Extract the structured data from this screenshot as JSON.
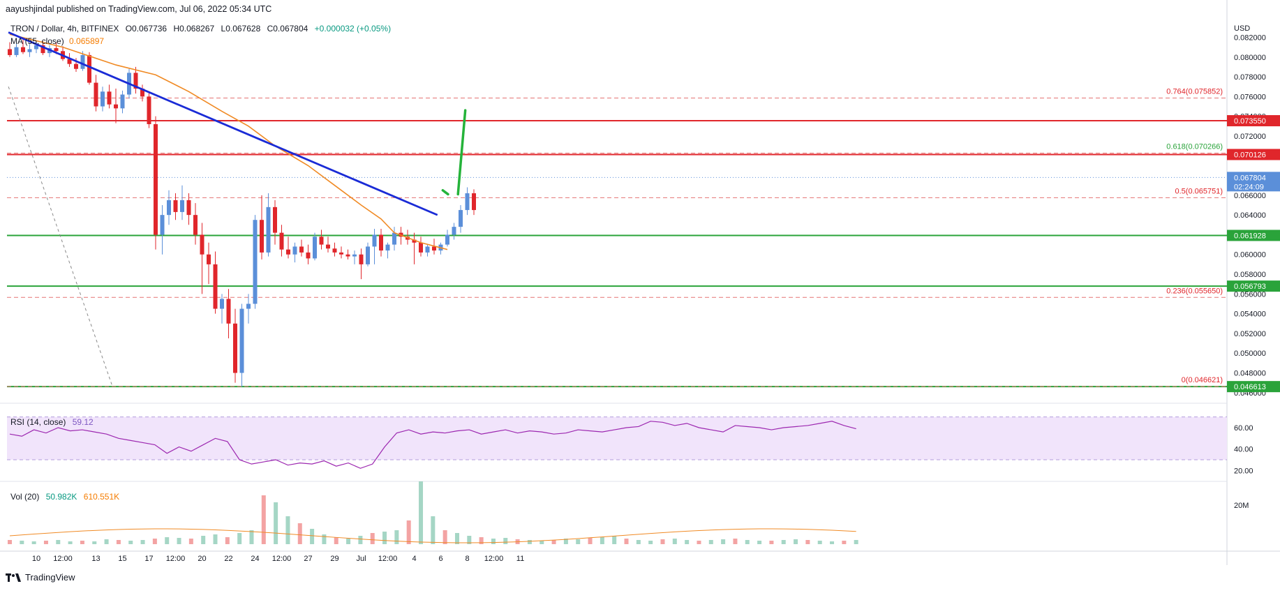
{
  "publisher": "aayushjindal published on TradingView.com, Jul 06, 2022 05:34 UTC",
  "legend": {
    "symbol": "TRON / Dollar, 4h, BITFINEX",
    "open": "O0.067736",
    "high": "H0.068267",
    "low": "L0.067628",
    "close": "C0.067804",
    "change": "+0.000032 (+0.05%)",
    "ma_label": "MA (55, close)",
    "ma_value": "0.065897"
  },
  "rsi_legend": {
    "label": "RSI (14, close)",
    "value": "59.12"
  },
  "vol_legend": {
    "label": "Vol (20)",
    "value1": "50.982K",
    "value2": "610.551K"
  },
  "footer": {
    "brand": "TradingView"
  },
  "colors": {
    "up": "#5b8fd9",
    "down": "#e0262b",
    "trendline": "#1a2bd6",
    "ma": "#f08a24",
    "resistance": "#e0262b",
    "support": "#2aa33a",
    "rsi": "#9c27b0",
    "rsi_band": "#f1e4fb",
    "arrow": "#25b33a"
  },
  "chart_data": {
    "type": "candlestick",
    "currency": "USD",
    "y_axis_unit": "USD",
    "ylim": [
      0.0462,
      0.0838
    ],
    "y_ticks": [
      "0.082000",
      "0.080000",
      "0.078000",
      "0.076000",
      "0.074000",
      "0.072000",
      "0.070000",
      "0.068000",
      "0.066000",
      "0.064000",
      "0.062000",
      "0.060000",
      "0.058000",
      "0.056000",
      "0.054000",
      "0.052000",
      "0.050000",
      "0.048000",
      "0.046000"
    ],
    "x_ticks": [
      "10",
      "12:00",
      "13",
      "15",
      "17",
      "12:00",
      "20",
      "22",
      "24",
      "12:00",
      "27",
      "29",
      "Jul",
      "12:00",
      "4",
      "6",
      "8",
      "12:00",
      "11"
    ],
    "x_tick_positions": [
      4,
      8,
      13,
      17,
      21,
      25,
      29,
      33,
      37,
      41,
      45,
      49,
      53,
      57,
      61,
      65,
      69,
      73,
      77
    ],
    "price_axis_labels": [
      {
        "text": "0.073550",
        "value": 0.07355,
        "color": "#e0262b"
      },
      {
        "text": "0.070126",
        "value": 0.070126,
        "color": "#e0262b"
      },
      {
        "text": "0.067804",
        "value": 0.067804,
        "color": "#5b8fd9",
        "sub": "02:24:09"
      },
      {
        "text": "0.061928",
        "value": 0.061928,
        "color": "#2aa33a"
      },
      {
        "text": "0.056793",
        "value": 0.056793,
        "color": "#2aa33a"
      },
      {
        "text": "0.046613",
        "value": 0.046613,
        "color": "#2aa33a"
      }
    ],
    "horizontal_levels": [
      {
        "name": "resistance-1",
        "value": 0.07355,
        "style": "solid",
        "color": "#e0262b"
      },
      {
        "name": "resistance-2",
        "value": 0.070126,
        "style": "solid",
        "color": "#e0262b"
      },
      {
        "name": "support-1",
        "value": 0.061928,
        "style": "solid",
        "color": "#2aa33a"
      },
      {
        "name": "support-2",
        "value": 0.056793,
        "style": "solid",
        "color": "#2aa33a"
      },
      {
        "name": "support-3",
        "value": 0.046613,
        "style": "solid",
        "color": "#2aa33a"
      }
    ],
    "fib_levels": [
      {
        "label": "0.764(0.075852)",
        "value": 0.075852
      },
      {
        "label": "0.618(0.070266)",
        "value": 0.070266
      },
      {
        "label": "0.5(0.065751)",
        "value": 0.065751
      },
      {
        "label": "0.236(0.055650)",
        "value": 0.05565
      },
      {
        "label": "0(0.046621)",
        "value": 0.046621
      }
    ],
    "last_price": 0.067804,
    "trendline": {
      "from": {
        "x": -0.2,
        "price": 0.0825
      },
      "to": {
        "x": 64.5,
        "price": 0.064
      }
    },
    "fib_dashed_line": {
      "from": {
        "x": -0.2,
        "price": 0.077
      },
      "to": {
        "x": 15.5,
        "price": 0.0466
      }
    },
    "projection": [
      {
        "from": {
          "x": 65.3,
          "price": 0.0665
        },
        "to": {
          "x": 66.1,
          "price": 0.0661
        }
      },
      {
        "from": {
          "x": 67.6,
          "price": 0.0661
        },
        "to": {
          "x": 68.7,
          "price": 0.0746
        }
      }
    ],
    "candles": [
      {
        "o": 0.0808,
        "h": 0.0815,
        "l": 0.08,
        "c": 0.0802
      },
      {
        "o": 0.0802,
        "h": 0.0814,
        "l": 0.08,
        "c": 0.081
      },
      {
        "o": 0.081,
        "h": 0.0818,
        "l": 0.0803,
        "c": 0.0805
      },
      {
        "o": 0.0805,
        "h": 0.0813,
        "l": 0.08,
        "c": 0.0808
      },
      {
        "o": 0.0808,
        "h": 0.0817,
        "l": 0.0804,
        "c": 0.0812
      },
      {
        "o": 0.0812,
        "h": 0.0816,
        "l": 0.0802,
        "c": 0.0804
      },
      {
        "o": 0.0804,
        "h": 0.0812,
        "l": 0.08,
        "c": 0.0809
      },
      {
        "o": 0.0809,
        "h": 0.0815,
        "l": 0.0803,
        "c": 0.0806
      },
      {
        "o": 0.0806,
        "h": 0.0811,
        "l": 0.0796,
        "c": 0.0798
      },
      {
        "o": 0.0798,
        "h": 0.0804,
        "l": 0.079,
        "c": 0.0793
      },
      {
        "o": 0.0793,
        "h": 0.0799,
        "l": 0.0785,
        "c": 0.0788
      },
      {
        "o": 0.0788,
        "h": 0.0806,
        "l": 0.0786,
        "c": 0.0802
      },
      {
        "o": 0.0802,
        "h": 0.0805,
        "l": 0.0772,
        "c": 0.0774
      },
      {
        "o": 0.0774,
        "h": 0.0782,
        "l": 0.0745,
        "c": 0.075
      },
      {
        "o": 0.075,
        "h": 0.077,
        "l": 0.0745,
        "c": 0.0765
      },
      {
        "o": 0.0765,
        "h": 0.0772,
        "l": 0.0748,
        "c": 0.0752
      },
      {
        "o": 0.0752,
        "h": 0.0768,
        "l": 0.0733,
        "c": 0.0748
      },
      {
        "o": 0.0748,
        "h": 0.0766,
        "l": 0.0743,
        "c": 0.0762
      },
      {
        "o": 0.0762,
        "h": 0.0788,
        "l": 0.0758,
        "c": 0.0784
      },
      {
        "o": 0.0784,
        "h": 0.079,
        "l": 0.0763,
        "c": 0.0768
      },
      {
        "o": 0.0768,
        "h": 0.0772,
        "l": 0.0755,
        "c": 0.076
      },
      {
        "o": 0.076,
        "h": 0.0765,
        "l": 0.0728,
        "c": 0.0732
      },
      {
        "o": 0.0732,
        "h": 0.074,
        "l": 0.0605,
        "c": 0.062
      },
      {
        "o": 0.062,
        "h": 0.065,
        "l": 0.06,
        "c": 0.064
      },
      {
        "o": 0.064,
        "h": 0.0665,
        "l": 0.063,
        "c": 0.0655
      },
      {
        "o": 0.0655,
        "h": 0.0662,
        "l": 0.0635,
        "c": 0.0643
      },
      {
        "o": 0.0643,
        "h": 0.067,
        "l": 0.0635,
        "c": 0.0655
      },
      {
        "o": 0.0655,
        "h": 0.0662,
        "l": 0.063,
        "c": 0.064
      },
      {
        "o": 0.064,
        "h": 0.0652,
        "l": 0.061,
        "c": 0.062
      },
      {
        "o": 0.062,
        "h": 0.0632,
        "l": 0.056,
        "c": 0.06
      },
      {
        "o": 0.06,
        "h": 0.0612,
        "l": 0.057,
        "c": 0.059
      },
      {
        "o": 0.059,
        "h": 0.0603,
        "l": 0.054,
        "c": 0.0545
      },
      {
        "o": 0.0545,
        "h": 0.056,
        "l": 0.053,
        "c": 0.0555
      },
      {
        "o": 0.0555,
        "h": 0.0565,
        "l": 0.0515,
        "c": 0.053
      },
      {
        "o": 0.053,
        "h": 0.0545,
        "l": 0.047,
        "c": 0.048
      },
      {
        "o": 0.048,
        "h": 0.055,
        "l": 0.0466,
        "c": 0.0545
      },
      {
        "o": 0.0545,
        "h": 0.056,
        "l": 0.053,
        "c": 0.055
      },
      {
        "o": 0.055,
        "h": 0.064,
        "l": 0.0545,
        "c": 0.0635
      },
      {
        "o": 0.0635,
        "h": 0.066,
        "l": 0.0595,
        "c": 0.0602
      },
      {
        "o": 0.0602,
        "h": 0.0662,
        "l": 0.0598,
        "c": 0.0648
      },
      {
        "o": 0.0648,
        "h": 0.0655,
        "l": 0.061,
        "c": 0.0622
      },
      {
        "o": 0.0622,
        "h": 0.063,
        "l": 0.0598,
        "c": 0.0605
      },
      {
        "o": 0.0605,
        "h": 0.0618,
        "l": 0.0596,
        "c": 0.06
      },
      {
        "o": 0.06,
        "h": 0.0612,
        "l": 0.0592,
        "c": 0.0608
      },
      {
        "o": 0.0608,
        "h": 0.0615,
        "l": 0.0598,
        "c": 0.0602
      },
      {
        "o": 0.0602,
        "h": 0.061,
        "l": 0.059,
        "c": 0.0596
      },
      {
        "o": 0.0596,
        "h": 0.0622,
        "l": 0.0594,
        "c": 0.0618
      },
      {
        "o": 0.0618,
        "h": 0.0625,
        "l": 0.0605,
        "c": 0.061
      },
      {
        "o": 0.061,
        "h": 0.0618,
        "l": 0.0602,
        "c": 0.0606
      },
      {
        "o": 0.0606,
        "h": 0.0612,
        "l": 0.0598,
        "c": 0.0602
      },
      {
        "o": 0.0602,
        "h": 0.0608,
        "l": 0.0596,
        "c": 0.06
      },
      {
        "o": 0.06,
        "h": 0.0605,
        "l": 0.0595,
        "c": 0.0598
      },
      {
        "o": 0.0598,
        "h": 0.0604,
        "l": 0.059,
        "c": 0.06
      },
      {
        "o": 0.06,
        "h": 0.0606,
        "l": 0.0575,
        "c": 0.059
      },
      {
        "o": 0.059,
        "h": 0.0612,
        "l": 0.0588,
        "c": 0.0608
      },
      {
        "o": 0.0608,
        "h": 0.0626,
        "l": 0.059,
        "c": 0.062
      },
      {
        "o": 0.062,
        "h": 0.0626,
        "l": 0.0598,
        "c": 0.0604
      },
      {
        "o": 0.0604,
        "h": 0.0612,
        "l": 0.0596,
        "c": 0.061
      },
      {
        "o": 0.061,
        "h": 0.0628,
        "l": 0.0604,
        "c": 0.0622
      },
      {
        "o": 0.0622,
        "h": 0.0628,
        "l": 0.061,
        "c": 0.0618
      },
      {
        "o": 0.0618,
        "h": 0.0625,
        "l": 0.061,
        "c": 0.0615
      },
      {
        "o": 0.0615,
        "h": 0.0622,
        "l": 0.059,
        "c": 0.0612
      },
      {
        "o": 0.0612,
        "h": 0.0618,
        "l": 0.0598,
        "c": 0.0602
      },
      {
        "o": 0.0602,
        "h": 0.061,
        "l": 0.0598,
        "c": 0.0608
      },
      {
        "o": 0.0608,
        "h": 0.0616,
        "l": 0.06,
        "c": 0.0604
      },
      {
        "o": 0.0604,
        "h": 0.0612,
        "l": 0.06,
        "c": 0.061
      },
      {
        "o": 0.061,
        "h": 0.0625,
        "l": 0.0608,
        "c": 0.062
      },
      {
        "o": 0.062,
        "h": 0.0632,
        "l": 0.0615,
        "c": 0.0628
      },
      {
        "o": 0.0628,
        "h": 0.065,
        "l": 0.0622,
        "c": 0.0645
      },
      {
        "o": 0.0645,
        "h": 0.0668,
        "l": 0.064,
        "c": 0.0662
      },
      {
        "o": 0.0662,
        "h": 0.0666,
        "l": 0.064,
        "c": 0.0645
      }
    ],
    "ma_points": [
      {
        "x": 0,
        "price": 0.0823
      },
      {
        "x": 8,
        "price": 0.081
      },
      {
        "x": 16,
        "price": 0.0792
      },
      {
        "x": 22,
        "price": 0.0782
      },
      {
        "x": 27,
        "price": 0.0765
      },
      {
        "x": 32,
        "price": 0.0745
      },
      {
        "x": 36,
        "price": 0.073
      },
      {
        "x": 40,
        "price": 0.071
      },
      {
        "x": 45,
        "price": 0.069
      },
      {
        "x": 49,
        "price": 0.067
      },
      {
        "x": 53,
        "price": 0.065
      },
      {
        "x": 56,
        "price": 0.0636
      },
      {
        "x": 58,
        "price": 0.0622
      },
      {
        "x": 62,
        "price": 0.0612
      },
      {
        "x": 66,
        "price": 0.0605
      }
    ],
    "rsi": {
      "ylim": [
        15,
        75
      ],
      "band": [
        30,
        70
      ],
      "ticks": [
        "60.00",
        "40.00",
        "20.00"
      ],
      "last": 59.12
    },
    "volume": {
      "ticks": [
        "20M"
      ]
    }
  }
}
